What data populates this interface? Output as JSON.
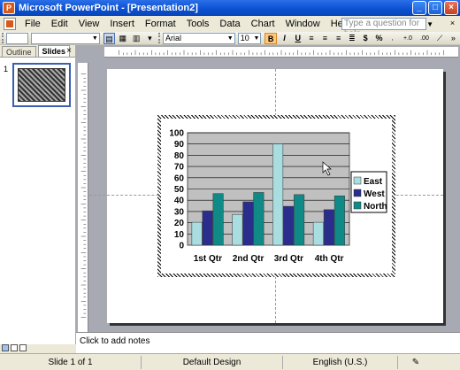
{
  "window": {
    "title": "Microsoft PowerPoint - [Presentation2]"
  },
  "menu": {
    "items": [
      "File",
      "Edit",
      "View",
      "Insert",
      "Format",
      "Tools",
      "Data",
      "Chart",
      "Window",
      "Help"
    ],
    "help_placeholder": "Type a question for help"
  },
  "toolbar": {
    "font_name": "Arial",
    "font_size": "10",
    "bold": "B",
    "italic": "I",
    "underline": "U",
    "currency": "$",
    "percent": "%",
    "inc_decimal": "+.0",
    "dec_decimal": ".00"
  },
  "panel": {
    "tab_outline": "Outline",
    "tab_slides": "Slides",
    "slide_number": "1"
  },
  "chart_data": {
    "type": "bar",
    "categories": [
      "1st Qtr",
      "2nd Qtr",
      "3rd Qtr",
      "4th Qtr"
    ],
    "series": [
      {
        "name": "East",
        "values": [
          20.4,
          27.4,
          90,
          20.4
        ],
        "color": "#a9dde0"
      },
      {
        "name": "West",
        "values": [
          30.6,
          38.6,
          34.6,
          31.6
        ],
        "color": "#2b2d8c"
      },
      {
        "name": "North",
        "values": [
          45.9,
          46.9,
          45,
          43.9
        ],
        "color": "#108a86"
      }
    ],
    "ylim": [
      0,
      100
    ],
    "yticks": [
      "0",
      "10",
      "20",
      "30",
      "40",
      "50",
      "60",
      "70",
      "80",
      "90",
      "100"
    ],
    "grid": true,
    "legend_position": "right",
    "plot_background": "#c0c0c0"
  },
  "notes": {
    "placeholder": "Click to add notes"
  },
  "status": {
    "slide": "Slide 1 of 1",
    "design": "Default Design",
    "language": "English (U.S.)"
  }
}
